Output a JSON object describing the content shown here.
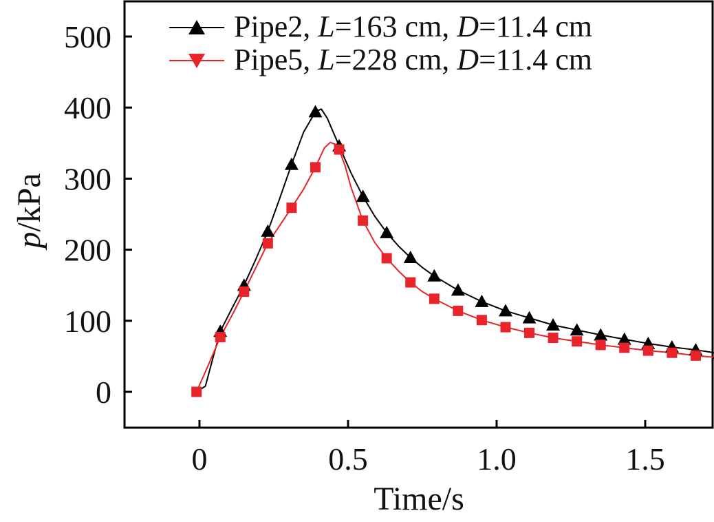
{
  "chart_data": {
    "type": "line",
    "title": "",
    "xlabel": "Time/s",
    "ylabel_italic": "p",
    "ylabel_rest": "/kPa",
    "xlim": [
      -0.25,
      1.75
    ],
    "ylim": [
      -50,
      550
    ],
    "x_ticks": [
      0,
      0.5,
      1.0,
      1.5
    ],
    "x_tick_labels": [
      "0",
      "0.5",
      "1.0",
      "1.5"
    ],
    "y_ticks": [
      0,
      100,
      200,
      300,
      400,
      500
    ],
    "y_tick_labels": [
      "0",
      "100",
      "200",
      "300",
      "400",
      "500"
    ],
    "grid": false,
    "legend_position": "top-right",
    "series": [
      {
        "name": "Pipe2, L=163 cm, D=11.4 cm",
        "legend": {
          "prefix": "Pipe2, ",
          "var1": "L",
          "mid": "=163 cm, ",
          "var2": "D",
          "suffix": "=11.4 cm"
        },
        "color": "#000000",
        "marker": "triangle-up",
        "markers": [
          [
            0.07,
            85
          ],
          [
            0.15,
            150
          ],
          [
            0.23,
            226
          ],
          [
            0.31,
            320
          ],
          [
            0.39,
            394
          ],
          [
            0.47,
            346
          ],
          [
            0.55,
            275
          ],
          [
            0.63,
            224
          ],
          [
            0.71,
            189
          ],
          [
            0.79,
            163
          ],
          [
            0.87,
            143
          ],
          [
            0.95,
            127
          ],
          [
            1.03,
            114
          ],
          [
            1.11,
            104
          ],
          [
            1.19,
            94
          ],
          [
            1.27,
            87
          ],
          [
            1.35,
            80
          ],
          [
            1.43,
            74
          ],
          [
            1.51,
            68
          ],
          [
            1.59,
            63
          ],
          [
            1.67,
            59
          ],
          [
            1.75,
            54
          ]
        ],
        "curve": [
          [
            -0.01,
            0
          ],
          [
            0.02,
            8
          ],
          [
            0.05,
            55
          ],
          [
            0.07,
            85
          ],
          [
            0.11,
            118
          ],
          [
            0.15,
            150
          ],
          [
            0.19,
            187
          ],
          [
            0.23,
            226
          ],
          [
            0.27,
            272
          ],
          [
            0.31,
            320
          ],
          [
            0.35,
            365
          ],
          [
            0.39,
            394
          ],
          [
            0.41,
            398
          ],
          [
            0.43,
            385
          ],
          [
            0.47,
            346
          ],
          [
            0.51,
            308
          ],
          [
            0.55,
            275
          ],
          [
            0.59,
            247
          ],
          [
            0.63,
            224
          ],
          [
            0.67,
            205
          ],
          [
            0.71,
            189
          ],
          [
            0.75,
            175
          ],
          [
            0.79,
            163
          ],
          [
            0.87,
            143
          ],
          [
            0.95,
            127
          ],
          [
            1.03,
            114
          ],
          [
            1.11,
            104
          ],
          [
            1.19,
            94
          ],
          [
            1.27,
            87
          ],
          [
            1.35,
            80
          ],
          [
            1.43,
            74
          ],
          [
            1.51,
            68
          ],
          [
            1.59,
            63
          ],
          [
            1.67,
            59
          ],
          [
            1.75,
            54
          ]
        ]
      },
      {
        "name": "Pipe5, L=228 cm, D=11.4 cm",
        "legend": {
          "prefix": "Pipe5, ",
          "var1": "L",
          "mid": "=228 cm, ",
          "var2": "D",
          "suffix": "=11.4 cm"
        },
        "color": "#e8232a",
        "marker": "square",
        "legend_marker": "triangle-down",
        "markers": [
          [
            -0.01,
            0
          ],
          [
            0.07,
            77
          ],
          [
            0.15,
            141
          ],
          [
            0.23,
            209
          ],
          [
            0.31,
            259
          ],
          [
            0.39,
            316
          ],
          [
            0.47,
            341
          ],
          [
            0.55,
            241
          ],
          [
            0.63,
            188
          ],
          [
            0.71,
            154
          ],
          [
            0.79,
            131
          ],
          [
            0.87,
            114
          ],
          [
            0.95,
            101
          ],
          [
            1.03,
            91
          ],
          [
            1.11,
            83
          ],
          [
            1.19,
            76
          ],
          [
            1.27,
            71
          ],
          [
            1.35,
            66
          ],
          [
            1.43,
            62
          ],
          [
            1.51,
            58
          ],
          [
            1.59,
            55
          ],
          [
            1.67,
            51
          ],
          [
            1.75,
            48
          ]
        ],
        "curve": [
          [
            -0.01,
            0
          ],
          [
            0.03,
            38
          ],
          [
            0.07,
            77
          ],
          [
            0.11,
            108
          ],
          [
            0.15,
            141
          ],
          [
            0.19,
            175
          ],
          [
            0.23,
            209
          ],
          [
            0.27,
            234
          ],
          [
            0.31,
            259
          ],
          [
            0.35,
            285
          ],
          [
            0.39,
            316
          ],
          [
            0.42,
            343
          ],
          [
            0.44,
            351
          ],
          [
            0.46,
            348
          ],
          [
            0.47,
            341
          ],
          [
            0.49,
            318
          ],
          [
            0.51,
            288
          ],
          [
            0.55,
            241
          ],
          [
            0.59,
            210
          ],
          [
            0.63,
            188
          ],
          [
            0.67,
            170
          ],
          [
            0.71,
            154
          ],
          [
            0.75,
            141
          ],
          [
            0.79,
            131
          ],
          [
            0.87,
            114
          ],
          [
            0.95,
            101
          ],
          [
            1.03,
            91
          ],
          [
            1.11,
            83
          ],
          [
            1.19,
            76
          ],
          [
            1.27,
            71
          ],
          [
            1.35,
            66
          ],
          [
            1.43,
            62
          ],
          [
            1.51,
            58
          ],
          [
            1.59,
            55
          ],
          [
            1.67,
            51
          ],
          [
            1.75,
            48
          ]
        ]
      }
    ]
  }
}
